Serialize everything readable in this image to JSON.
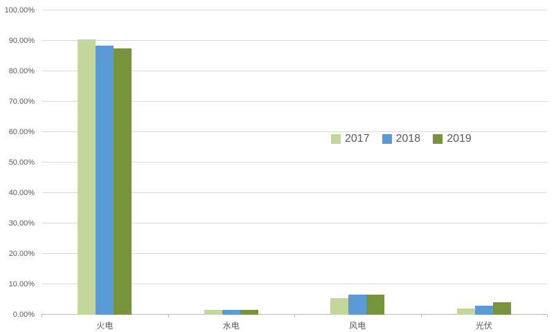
{
  "chart_data": {
    "type": "bar",
    "title": "",
    "xlabel": "",
    "ylabel": "",
    "categories": [
      "火电",
      "水电",
      "风电",
      "光伏"
    ],
    "series": [
      {
        "name": "2017",
        "color": "#c3d69b",
        "values": [
          90.5,
          1.5,
          5.5,
          2.0
        ]
      },
      {
        "name": "2018",
        "color": "#5b9bd5",
        "values": [
          88.5,
          1.5,
          6.5,
          3.0
        ]
      },
      {
        "name": "2019",
        "color": "#77933c",
        "values": [
          87.5,
          1.5,
          6.5,
          4.0
        ]
      }
    ],
    "ylim": [
      0,
      100
    ],
    "yticks": [
      0,
      10,
      20,
      30,
      40,
      50,
      60,
      70,
      80,
      90,
      100
    ],
    "ytick_labels": [
      "0.00%",
      "10.00%",
      "20.00%",
      "30.00%",
      "40.00%",
      "50.00%",
      "60.00%",
      "70.00%",
      "80.00%",
      "90.00%",
      "100.00%"
    ],
    "grid": true,
    "legend_position": "middle-right"
  },
  "colors": {
    "background": "#ffffff",
    "grid": "#d9d9d9",
    "axis": "#b7b7b7",
    "text": "#595959"
  }
}
